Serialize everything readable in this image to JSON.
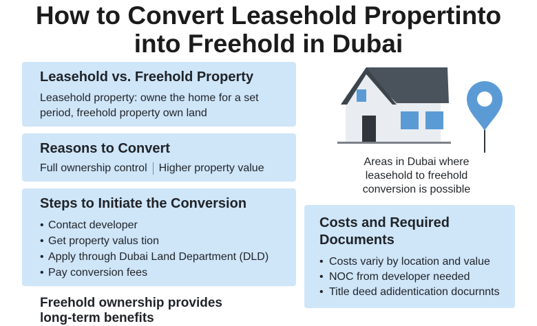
{
  "title_line1": "How to Convert Leasehold Propertinto",
  "title_line2": "into Freehold in Dubai",
  "leasehold": {
    "heading": "Leasehold vs. Freehold Property",
    "text_line1": "Leasehold property: owne the home for a set",
    "text_line2": "period, freehold property own land"
  },
  "reasons": {
    "heading": "Reasons to Convert",
    "items": [
      "Full ownership control",
      "Higher property value"
    ]
  },
  "steps": {
    "heading": "Steps to Initiate the Conversion",
    "items": [
      "Contact developer",
      "Get property valus tion",
      "Apply through Dubai Land Department (DLD)",
      "Pay conversion fees"
    ]
  },
  "costs": {
    "heading_line1": "Costs and Required",
    "heading_line2": "Documents",
    "items": [
      "Costs variy by location and value",
      "NOC from developer needed",
      "Title deed adidentication docurnnts"
    ]
  },
  "caption": {
    "line1": "Areas in Dubai where",
    "line2": "leasehold to freehold",
    "line3": "conversion is possible"
  },
  "footer": {
    "line1": "Freehold ownership provides",
    "line2": "long-term benefits"
  },
  "colors": {
    "card_bg": "#cfe5f8",
    "roof": "#4a535c",
    "house_wall": "#e9edf1",
    "window": "#5b9bd5",
    "pin": "#5b9bd5"
  },
  "icons": [
    "house-icon",
    "location-pin-icon"
  ]
}
